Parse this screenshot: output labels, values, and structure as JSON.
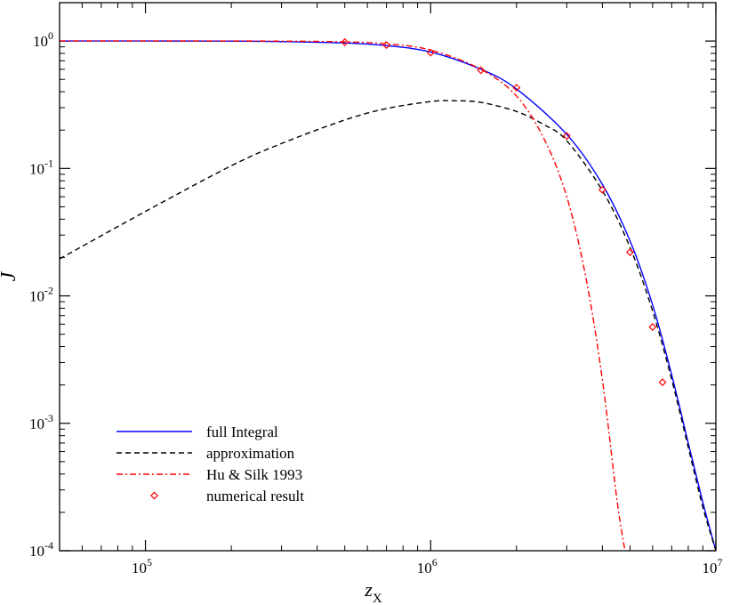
{
  "chart_data": {
    "type": "line",
    "title": "",
    "xlabel": {
      "main": "z",
      "sub": "X"
    },
    "ylabel": "J",
    "xscale": "log",
    "yscale": "log",
    "xlim": [
      50000,
      10000000
    ],
    "ylim": [
      0.0001,
      2
    ],
    "grid": false,
    "legend_position": "bottom-left",
    "x_ticks": [
      {
        "value": 100000,
        "base": "10",
        "exp": "5"
      },
      {
        "value": 1000000,
        "base": "10",
        "exp": "6"
      },
      {
        "value": 10000000,
        "base": "10",
        "exp": "7"
      }
    ],
    "y_ticks": [
      {
        "value": 1,
        "base": "10",
        "exp": "0"
      },
      {
        "value": 0.1,
        "base": "10",
        "exp": "-1"
      },
      {
        "value": 0.01,
        "base": "10",
        "exp": "-2"
      },
      {
        "value": 0.001,
        "base": "10",
        "exp": "-3"
      },
      {
        "value": 0.0001,
        "base": "10",
        "exp": "-4"
      }
    ],
    "series": [
      {
        "name": "full Integral",
        "style": "line",
        "color": "#0000ff",
        "dash": "",
        "x": [
          50000,
          100000,
          200000,
          300000,
          500000,
          700000,
          1000000,
          1500000,
          2000000,
          3000000,
          4000000,
          5000000,
          6000000,
          7000000,
          8000000,
          9000000,
          10000000
        ],
        "y": [
          1.0,
          1.0,
          0.998,
          0.99,
          0.965,
          0.92,
          0.82,
          0.6,
          0.42,
          0.185,
          0.075,
          0.027,
          0.0085,
          0.0024,
          0.0007,
          0.00024,
          0.0001
        ]
      },
      {
        "name": "approximation",
        "style": "line",
        "color": "#000000",
        "dash": "6,4",
        "x": [
          50000,
          100000,
          200000,
          300000,
          500000,
          700000,
          1000000,
          1200000,
          1500000,
          2000000,
          2500000,
          3000000,
          4000000,
          5000000,
          6000000,
          7000000,
          8000000,
          9000000,
          10000000
        ],
        "y": [
          0.0195,
          0.046,
          0.105,
          0.157,
          0.24,
          0.295,
          0.335,
          0.34,
          0.33,
          0.28,
          0.22,
          0.165,
          0.067,
          0.024,
          0.0076,
          0.0022,
          0.00065,
          0.00022,
          0.0001
        ]
      },
      {
        "name": "Hu & Silk 1993",
        "style": "line",
        "color": "#ff0000",
        "dash": "7,3,2,3",
        "x": [
          50000,
          100000,
          200000,
          300000,
          500000,
          700000,
          1000000,
          1500000,
          2000000,
          2500000,
          3000000,
          3500000,
          4000000,
          4500000,
          4800000
        ],
        "y": [
          1.0,
          1.0,
          1.0,
          0.998,
          0.985,
          0.95,
          0.85,
          0.6,
          0.37,
          0.17,
          0.06,
          0.014,
          0.0022,
          0.00025,
          0.0001
        ]
      },
      {
        "name": "numerical result",
        "style": "markers",
        "color": "#ff0000",
        "dash": "",
        "x": [
          500000,
          700000,
          1000000,
          1500000,
          2000000,
          3000000,
          4000000,
          5000000,
          6000000,
          6500000
        ],
        "y": [
          0.98,
          0.93,
          0.81,
          0.59,
          0.43,
          0.18,
          0.068,
          0.022,
          0.0057,
          0.0021
        ]
      }
    ]
  }
}
